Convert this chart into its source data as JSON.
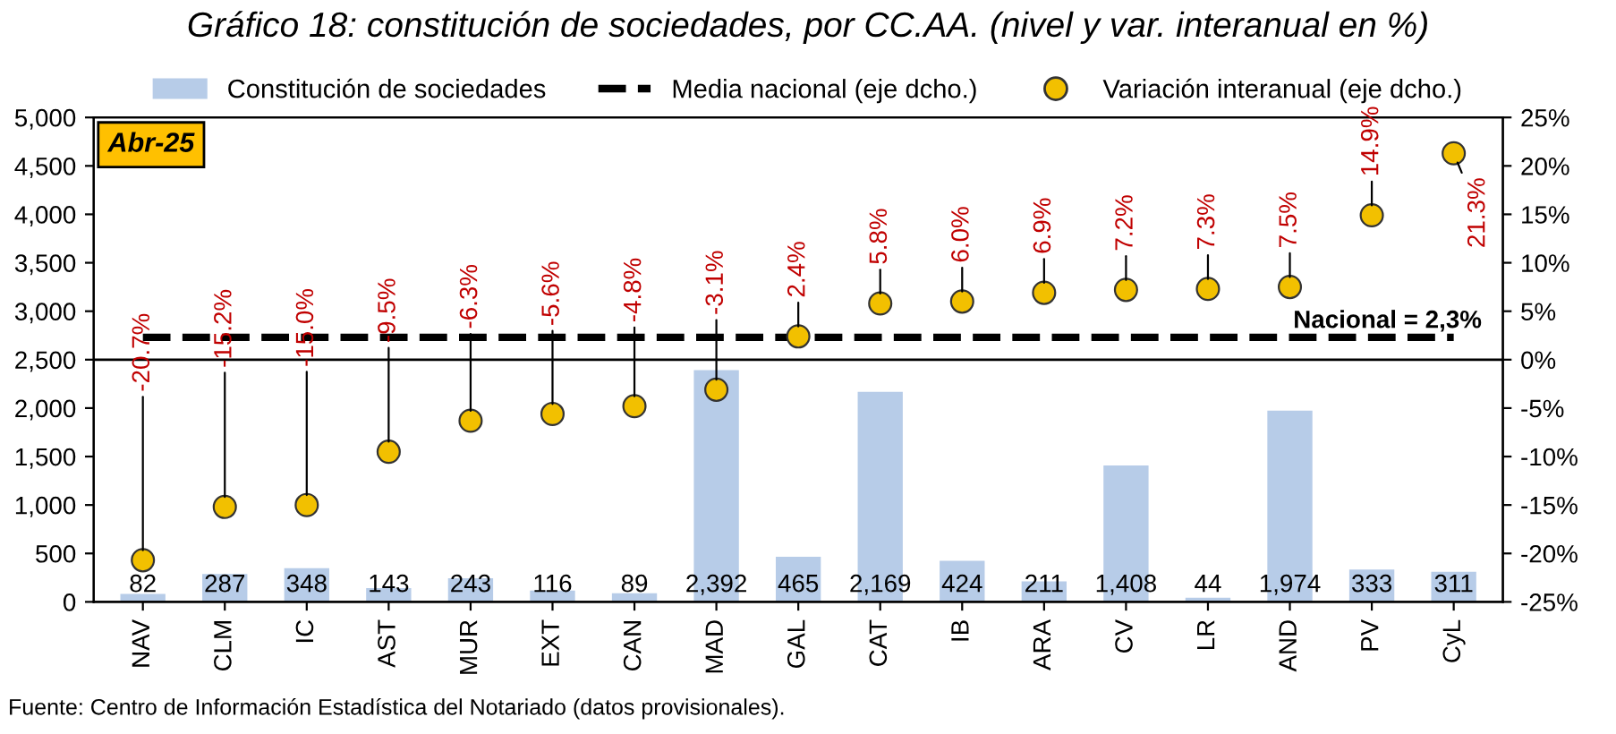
{
  "chart_data": {
    "type": "bar",
    "title": "Gráfico 18: constitución de sociedades, por CC.AA. (nivel y var. interanual en %)",
    "categories": [
      "NAV",
      "CLM",
      "IC",
      "AST",
      "MUR",
      "EXT",
      "CAN",
      "MAD",
      "GAL",
      "CAT",
      "IB",
      "ARA",
      "CV",
      "LR",
      "AND",
      "PV",
      "CyL"
    ],
    "series": [
      {
        "name": "Constitución de sociedades",
        "color": "#b7cce8",
        "values": [
          82,
          287,
          348,
          143,
          243,
          116,
          89,
          2392,
          465,
          2169,
          424,
          211,
          1408,
          44,
          1974,
          333,
          311
        ],
        "value_labels": [
          "82",
          "287",
          "348",
          "143",
          "243",
          "116",
          "89",
          "2,392",
          "465",
          "2,169",
          "424",
          "211",
          "1,408",
          "44",
          "1,974",
          "333",
          "311"
        ]
      },
      {
        "name": "Media nacional (eje dcho.)",
        "type": "line",
        "axis": "y2",
        "color": "#000000",
        "line_style": "dashed",
        "marker": "none",
        "values": [
          2.3,
          2.3,
          2.3,
          2.3,
          2.3,
          2.3,
          2.3,
          2.3,
          2.3,
          2.3,
          2.3,
          2.3,
          2.3,
          2.3,
          2.3,
          2.3,
          2.3
        ]
      },
      {
        "name": "Variación interanual (eje dcho.)",
        "type": "scatter",
        "axis": "y2",
        "color": "#f2c000",
        "marker": "circle",
        "values": [
          -20.7,
          -15.2,
          -15.0,
          -9.5,
          -6.3,
          -5.6,
          -4.8,
          -3.1,
          2.4,
          5.8,
          6.0,
          6.9,
          7.2,
          7.3,
          7.5,
          14.9,
          21.3
        ],
        "value_labels": [
          "-20.7%",
          "-15.2%",
          "-15.0%",
          "-9.5%",
          "-6.3%",
          "-5.6%",
          "-4.8%",
          "-3.1%",
          "2.4%",
          "5.8%",
          "6.0%",
          "6.9%",
          "7.2%",
          "7.3%",
          "7.5%",
          "14.9%",
          "21.3%"
        ]
      }
    ],
    "ylim": [
      0,
      5000
    ],
    "yticks": [
      {
        "value": 0,
        "label": "0"
      },
      {
        "value": 500,
        "label": "500"
      },
      {
        "value": 1000,
        "label": "1,000"
      },
      {
        "value": 1500,
        "label": "1,500"
      },
      {
        "value": 2000,
        "label": "2,000"
      },
      {
        "value": 2500,
        "label": "2,500"
      },
      {
        "value": 3000,
        "label": "3,000"
      },
      {
        "value": 3500,
        "label": "3,500"
      },
      {
        "value": 4000,
        "label": "4,000"
      },
      {
        "value": 4500,
        "label": "4,500"
      },
      {
        "value": 5000,
        "label": "5,000"
      }
    ],
    "y2lim": [
      -25,
      25
    ],
    "y2ticks": [
      {
        "value": -25,
        "label": "-25%"
      },
      {
        "value": -20,
        "label": "-20%"
      },
      {
        "value": -15,
        "label": "-15%"
      },
      {
        "value": -10,
        "label": "-10%"
      },
      {
        "value": -5,
        "label": "-5%"
      },
      {
        "value": 0,
        "label": "0%"
      },
      {
        "value": 5,
        "label": "5%"
      },
      {
        "value": 10,
        "label": "10%"
      },
      {
        "value": 15,
        "label": "15%"
      },
      {
        "value": 20,
        "label": "20%"
      },
      {
        "value": 25,
        "label": "25%"
      }
    ],
    "ref_lines": [
      {
        "axis": "y2",
        "value": 0,
        "color": "#000000",
        "line_style": "solid"
      }
    ],
    "annotations": [
      "Abr-25",
      "Nacional = 2,3%",
      "Fuente: Centro de Información Estadística del Notariado (datos provisionales)."
    ],
    "legend": "top",
    "grid": false
  }
}
